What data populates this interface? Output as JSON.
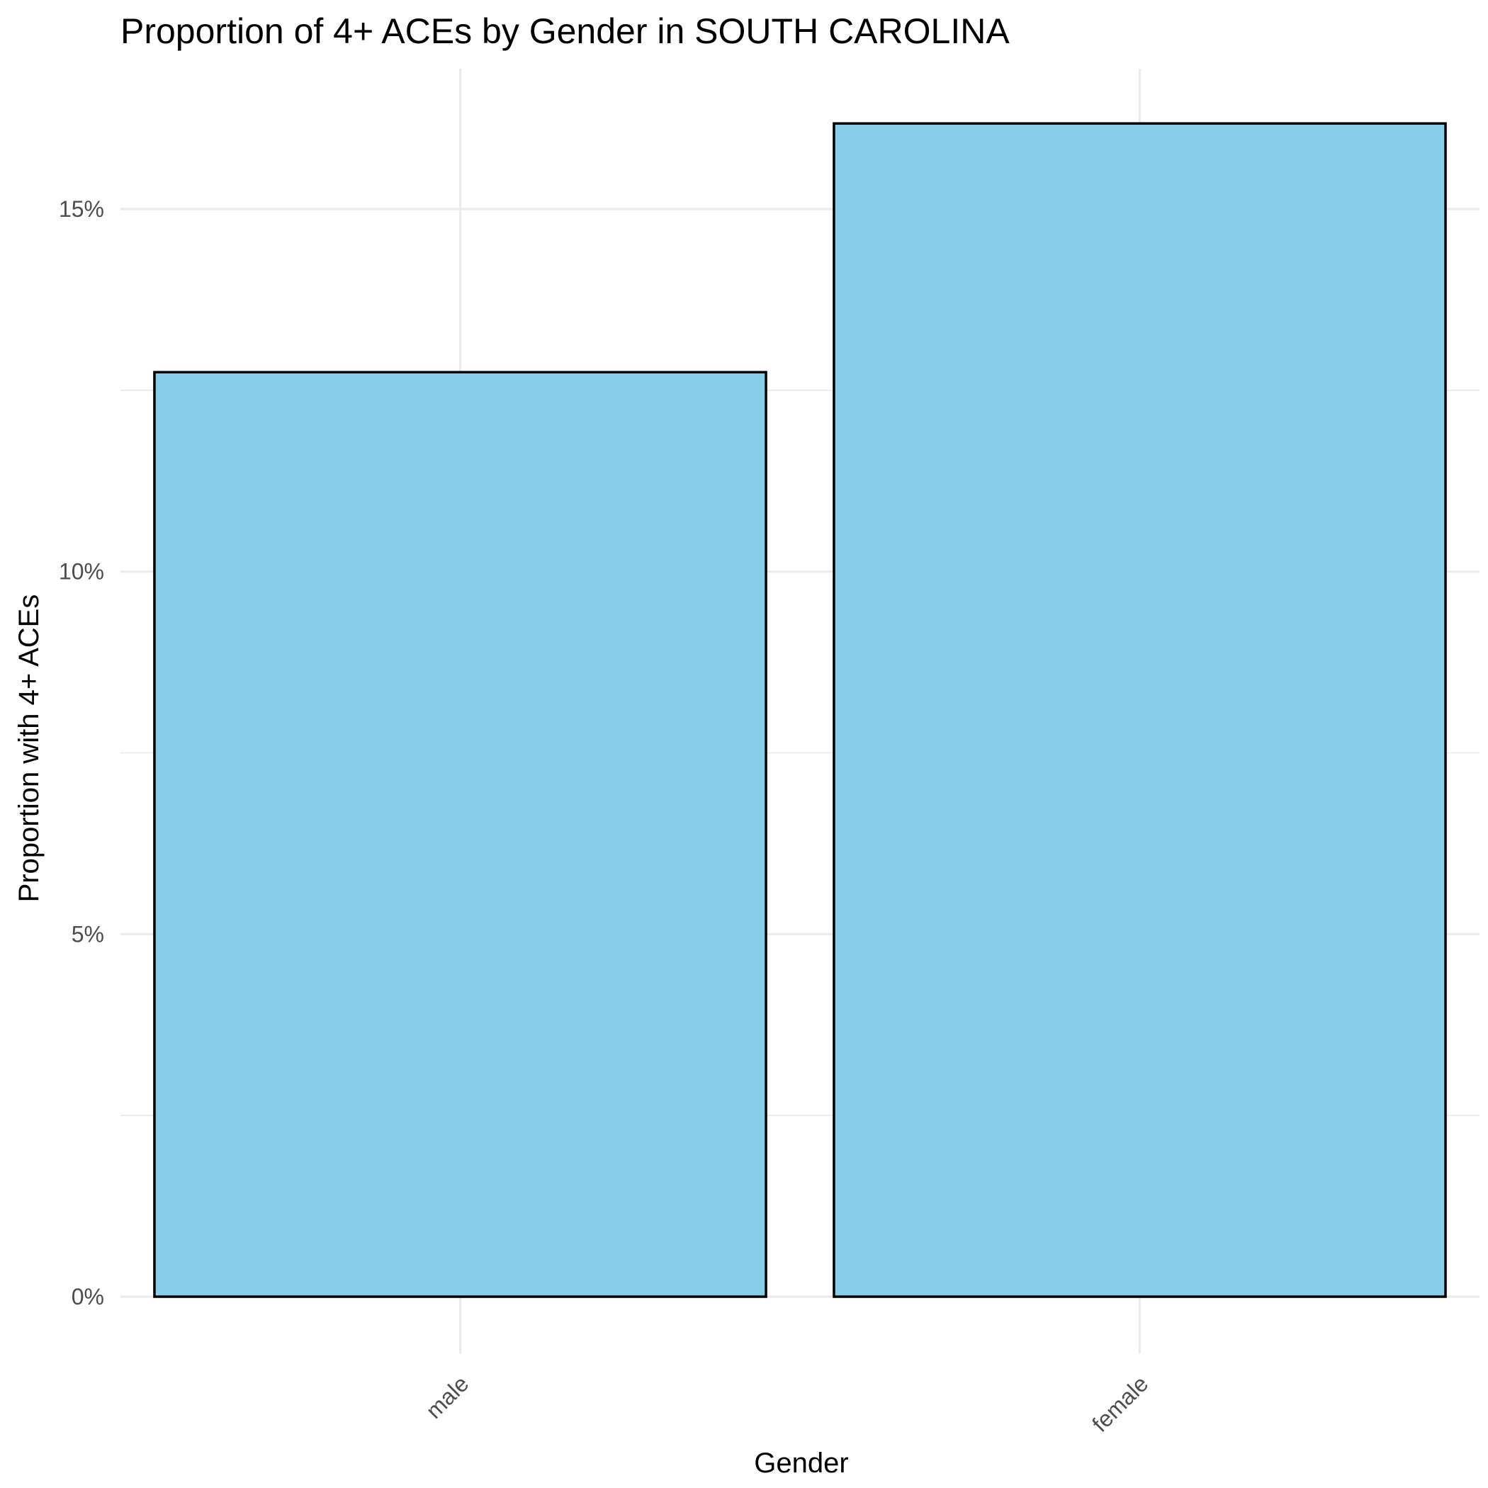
{
  "chart_data": {
    "type": "bar",
    "title": "Proportion of 4+ ACEs by Gender in SOUTH CAROLINA",
    "xlabel": "Gender",
    "ylabel": "Proportion with 4+ ACEs",
    "categories": [
      "male",
      "female"
    ],
    "values": [
      0.1275,
      0.1618
    ],
    "ylim": [
      0,
      0.1695
    ],
    "y_ticks": [
      0,
      0.05,
      0.1,
      0.15
    ],
    "y_tick_labels": [
      "0%",
      "5%",
      "10%",
      "15%"
    ],
    "grid": true,
    "legend": "none",
    "bar_fill": "#87CEEB",
    "bar_outline": "#000000"
  }
}
